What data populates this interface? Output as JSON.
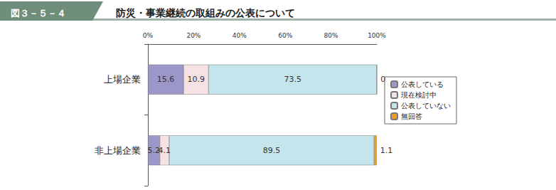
{
  "chart_data": {
    "type": "bar",
    "orientation": "horizontal",
    "stacked": true,
    "data_labels": true,
    "grid": false,
    "legend": "right",
    "subtitle": "図３－５－４",
    "title": "防災・事業継続の取組みの公表について",
    "categories": [
      "上場企業",
      "非上場企業"
    ],
    "series": [
      {
        "name": "公表している",
        "color": "#9b97c9",
        "values": [
          15.6,
          5.2
        ]
      },
      {
        "name": "現在検討中",
        "color": "#f6e1e4",
        "values": [
          10.9,
          4.1
        ]
      },
      {
        "name": "公表していない",
        "color": "#c4e5ec",
        "values": [
          73.5,
          89.5
        ]
      },
      {
        "name": "無回答",
        "color": "#f29b1e",
        "values": [
          0,
          1.1
        ]
      }
    ],
    "xlim": [
      0,
      100
    ],
    "xticks": [
      {
        "value": 0,
        "label": "0%"
      },
      {
        "value": 20,
        "label": "20%"
      },
      {
        "value": 40,
        "label": "40%"
      },
      {
        "value": 60,
        "label": "60%"
      },
      {
        "value": 80,
        "label": "80%"
      },
      {
        "value": 100,
        "label": "100%"
      }
    ]
  }
}
